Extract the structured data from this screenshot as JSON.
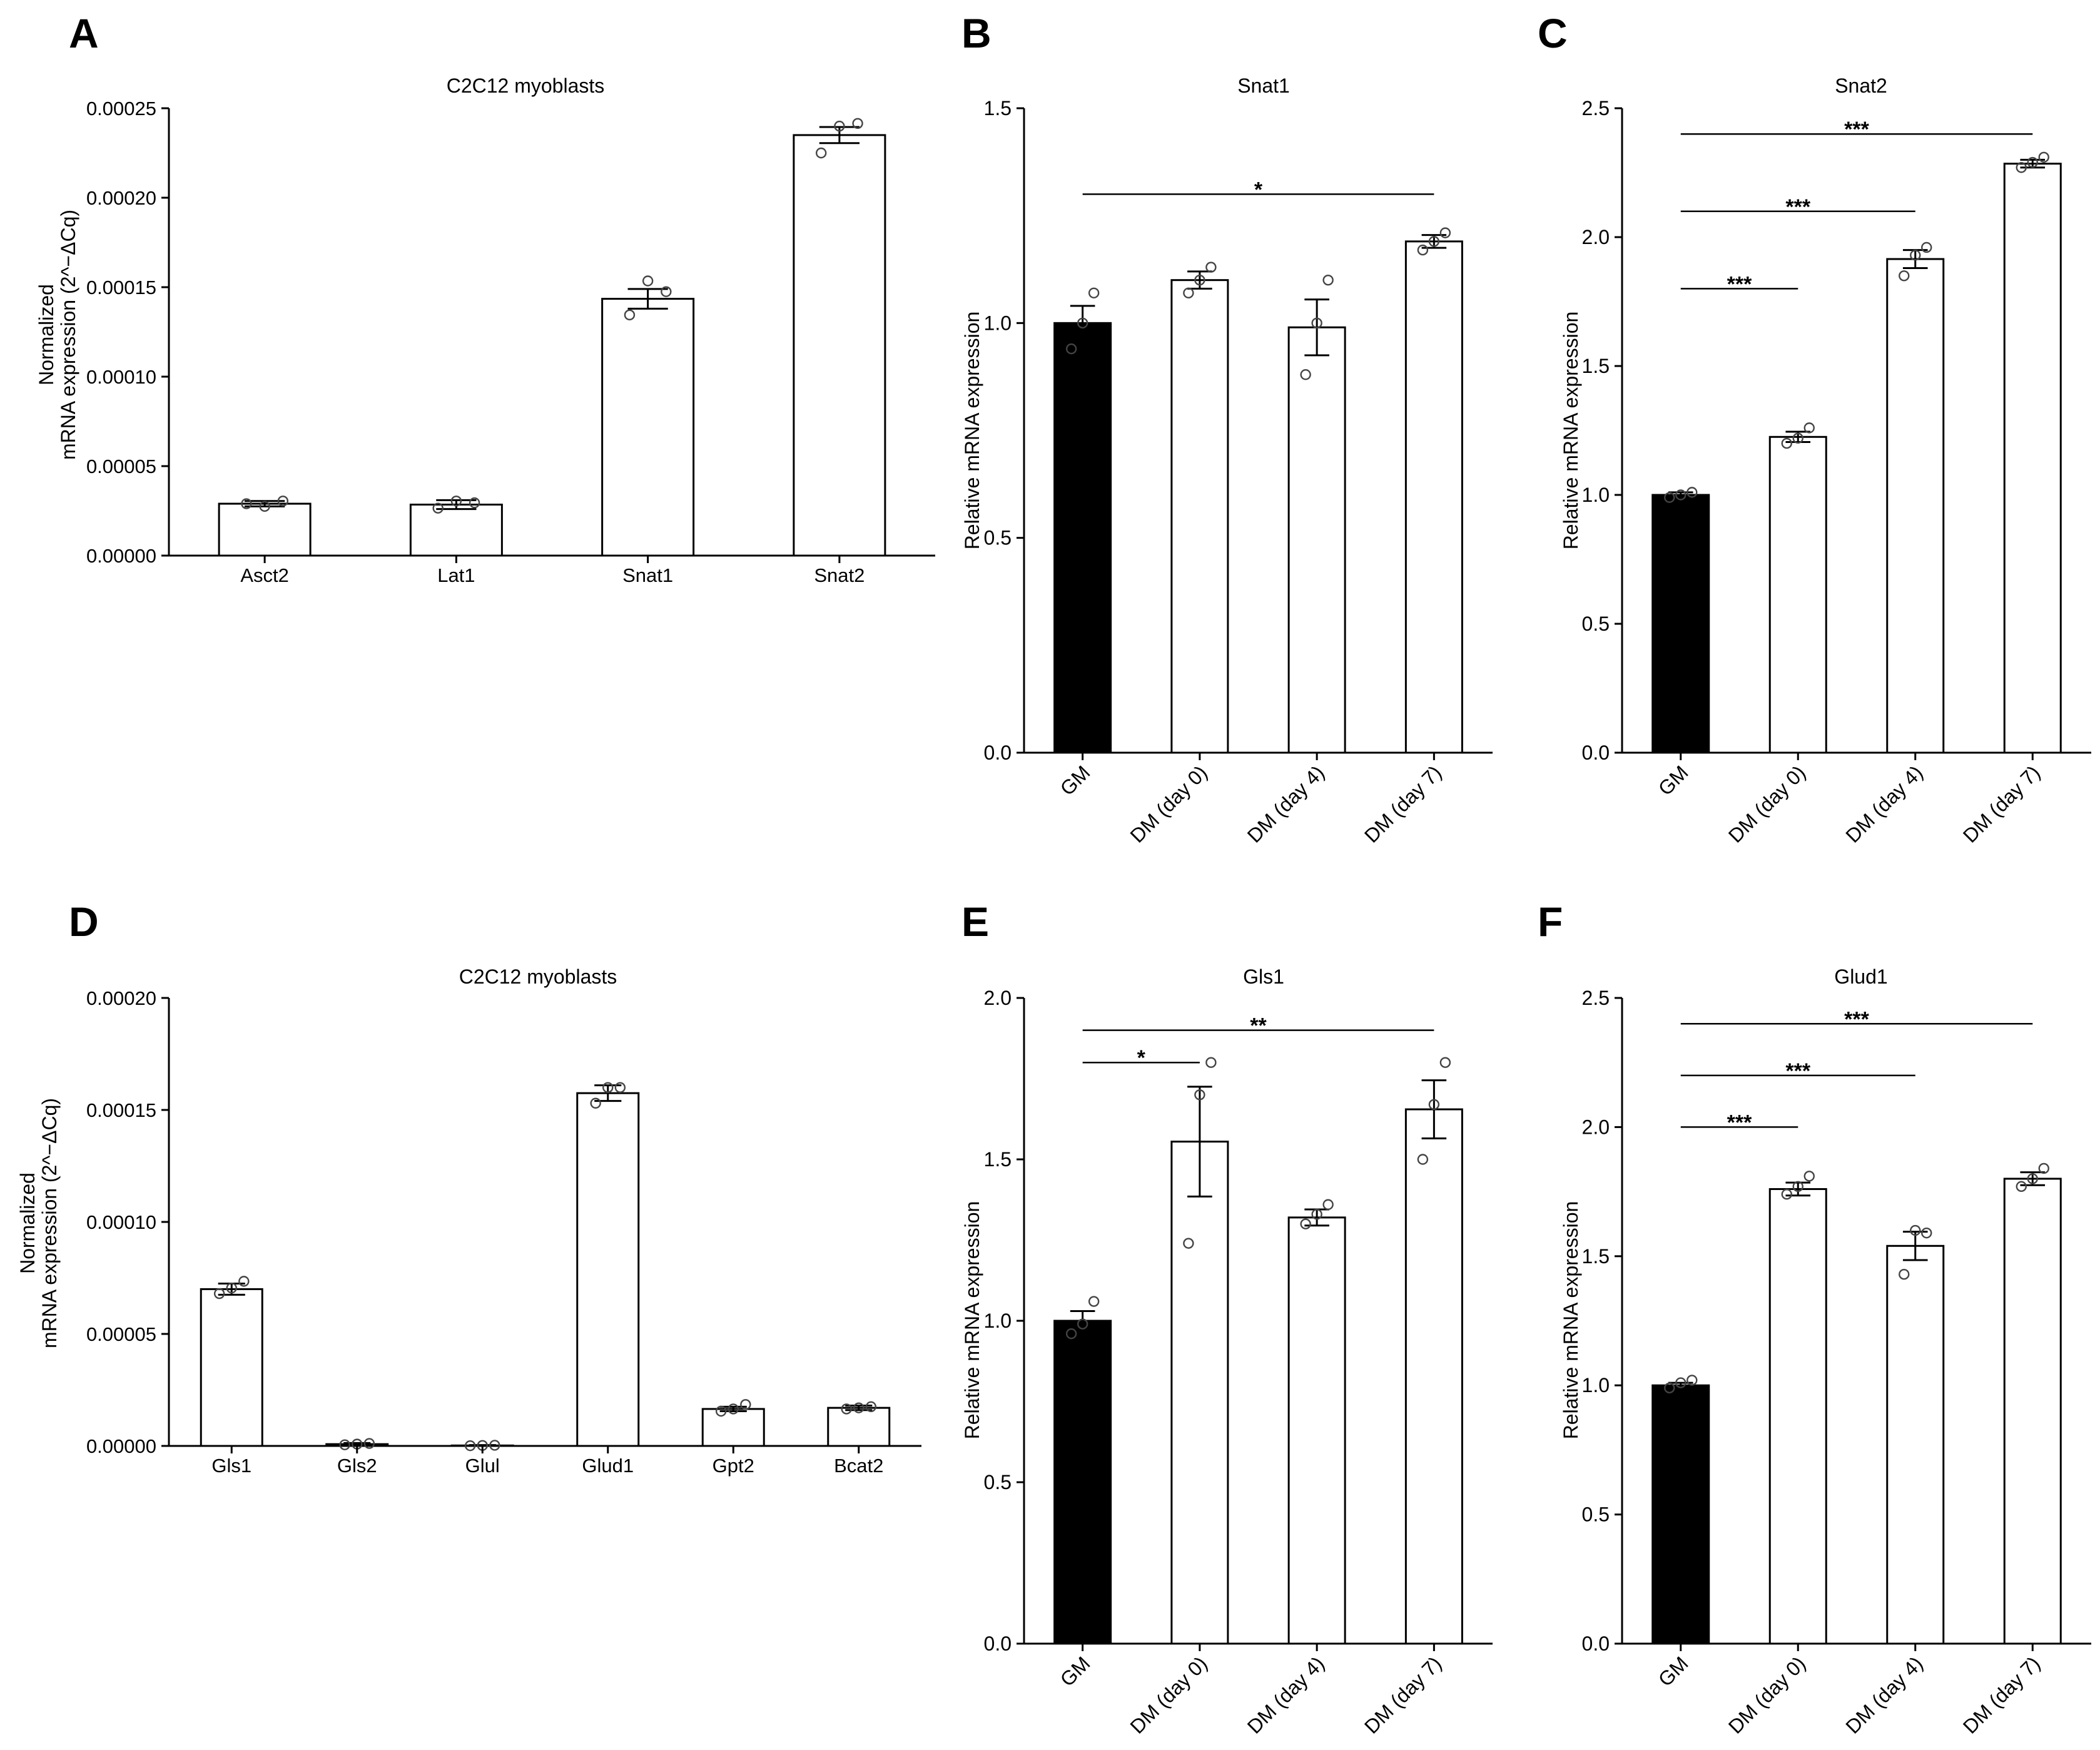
{
  "figure": {
    "background": "#ffffff",
    "bar_fill_control": "#000000",
    "bar_fill_other": "#ffffff",
    "stroke": "#000000"
  },
  "chart_data": [
    {
      "panel": "A",
      "type": "bar",
      "title": "C2C12 myoblasts",
      "ylabel": [
        "Normalized",
        "mRNA expression (2^−ΔCq)"
      ],
      "xlabel": "",
      "ylim": [
        0,
        0.00025
      ],
      "yticks": [
        "0.00000",
        "0.00005",
        "0.00010",
        "0.00015",
        "0.00020",
        "0.00025"
      ],
      "categories": [
        "Asct2",
        "Lat1",
        "Snat1",
        "Snat2"
      ],
      "values": [
        2.9e-05,
        2.85e-05,
        0.0001435,
        0.000235
      ],
      "errors": [
        1.5e-06,
        2.5e-06,
        5.5e-06,
        4.5e-06
      ],
      "points": [
        [
          2.9e-05,
          2.75e-05,
          3.05e-05
        ],
        [
          2.65e-05,
          3.05e-05,
          2.95e-05
        ],
        [
          0.0001345,
          0.0001535,
          0.0001475
        ],
        [
          0.000225,
          0.00024,
          0.0002415
        ]
      ],
      "black_bars": [],
      "x_tick_rotate": false,
      "significance": []
    },
    {
      "panel": "B",
      "type": "bar",
      "title": "Snat1",
      "ylabel": [
        "Relative mRNA expression"
      ],
      "xlabel": "",
      "ylim": [
        0,
        1.5
      ],
      "yticks": [
        "0.0",
        "0.5",
        "1.0",
        "1.5"
      ],
      "categories": [
        "GM",
        "DM (day 0)",
        "DM (day 4)",
        "DM (day 7)"
      ],
      "values": [
        1.0,
        1.1,
        0.99,
        1.19
      ],
      "errors": [
        0.04,
        0.02,
        0.065,
        0.015
      ],
      "points": [
        [
          0.94,
          1.0,
          1.07
        ],
        [
          1.07,
          1.1,
          1.13
        ],
        [
          0.88,
          1.0,
          1.1
        ],
        [
          1.17,
          1.19,
          1.21
        ]
      ],
      "black_bars": [
        0
      ],
      "x_tick_rotate": true,
      "significance": [
        {
          "from": 0,
          "to": 3,
          "y": 1.3,
          "label": "*"
        }
      ]
    },
    {
      "panel": "C",
      "type": "bar",
      "title": "Snat2",
      "ylabel": [
        "Relative mRNA expression"
      ],
      "xlabel": "",
      "ylim": [
        0,
        2.5
      ],
      "yticks": [
        "0.0",
        "0.5",
        "1.0",
        "1.5",
        "2.0",
        "2.5"
      ],
      "categories": [
        "GM",
        "DM (day 0)",
        "DM (day 4)",
        "DM (day 7)"
      ],
      "values": [
        1.0,
        1.225,
        1.915,
        2.285
      ],
      "errors": [
        0.01,
        0.02,
        0.035,
        0.015
      ],
      "points": [
        [
          0.99,
          1.0,
          1.01
        ],
        [
          1.2,
          1.22,
          1.26
        ],
        [
          1.85,
          1.93,
          1.96
        ],
        [
          2.27,
          2.29,
          2.31
        ]
      ],
      "black_bars": [
        0
      ],
      "x_tick_rotate": true,
      "significance": [
        {
          "from": 0,
          "to": 1,
          "y": 1.8,
          "label": "***"
        },
        {
          "from": 0,
          "to": 2,
          "y": 2.1,
          "label": "***"
        },
        {
          "from": 0,
          "to": 3,
          "y": 2.4,
          "label": "***"
        }
      ]
    },
    {
      "panel": "D",
      "type": "bar",
      "title": "C2C12 myoblasts",
      "ylabel": [
        "Normalized",
        "mRNA expression (2^−ΔCq)"
      ],
      "xlabel": "",
      "ylim": [
        0,
        0.0002
      ],
      "yticks": [
        "0.00000",
        "0.00005",
        "0.00010",
        "0.00015",
        "0.00020"
      ],
      "categories": [
        "Gls1",
        "Gls2",
        "Glul",
        "Glud1",
        "Gpt2",
        "Bcat2"
      ],
      "values": [
        7e-05,
        8e-07,
        2e-07,
        0.0001575,
        1.65e-05,
        1.7e-05
      ],
      "errors": [
        2.5e-06,
        5e-07,
        2e-07,
        3.5e-06,
        1e-06,
        1e-06
      ],
      "points": [
        [
          6.8e-05,
          7.05e-05,
          7.35e-05
        ],
        [
          5e-07,
          8e-07,
          1.1e-06
        ],
        [
          1e-07,
          2e-07,
          3e-07
        ],
        [
          0.000153,
          0.00016,
          0.00016
        ],
        [
          1.55e-05,
          1.65e-05,
          1.85e-05
        ],
        [
          1.65e-05,
          1.7e-05,
          1.75e-05
        ]
      ],
      "black_bars": [],
      "x_tick_rotate": false,
      "significance": []
    },
    {
      "panel": "E",
      "type": "bar",
      "title": "Gls1",
      "ylabel": [
        "Relative mRNA expression"
      ],
      "xlabel": "",
      "ylim": [
        0,
        2.0
      ],
      "yticks": [
        "0.0",
        "0.5",
        "1.0",
        "1.5",
        "2.0"
      ],
      "categories": [
        "GM",
        "DM (day 0)",
        "DM (day 4)",
        "DM (day 7)"
      ],
      "values": [
        1.0,
        1.555,
        1.32,
        1.655
      ],
      "errors": [
        0.03,
        0.17,
        0.025,
        0.09
      ],
      "points": [
        [
          0.96,
          0.99,
          1.06
        ],
        [
          1.24,
          1.7,
          1.8
        ],
        [
          1.3,
          1.33,
          1.36
        ],
        [
          1.5,
          1.67,
          1.8
        ]
      ],
      "black_bars": [
        0
      ],
      "x_tick_rotate": true,
      "significance": [
        {
          "from": 0,
          "to": 1,
          "y": 1.8,
          "label": "*"
        },
        {
          "from": 0,
          "to": 3,
          "y": 1.9,
          "label": "**"
        }
      ]
    },
    {
      "panel": "F",
      "type": "bar",
      "title": "Glud1",
      "ylabel": [
        "Relative mRNA expression"
      ],
      "xlabel": "",
      "ylim": [
        0,
        2.5
      ],
      "yticks": [
        "0.0",
        "0.5",
        "1.0",
        "1.5",
        "2.0",
        "2.5"
      ],
      "categories": [
        "GM",
        "DM (day 0)",
        "DM (day 4)",
        "DM (day 7)"
      ],
      "values": [
        1.0,
        1.76,
        1.54,
        1.8
      ],
      "errors": [
        0.01,
        0.025,
        0.055,
        0.025
      ],
      "points": [
        [
          0.99,
          1.01,
          1.02
        ],
        [
          1.74,
          1.77,
          1.81
        ],
        [
          1.43,
          1.6,
          1.59
        ],
        [
          1.77,
          1.8,
          1.84
        ]
      ],
      "black_bars": [
        0
      ],
      "x_tick_rotate": true,
      "significance": [
        {
          "from": 0,
          "to": 1,
          "y": 2.0,
          "label": "***"
        },
        {
          "from": 0,
          "to": 2,
          "y": 2.2,
          "label": "***"
        },
        {
          "from": 0,
          "to": 3,
          "y": 2.4,
          "label": "***"
        }
      ]
    }
  ]
}
